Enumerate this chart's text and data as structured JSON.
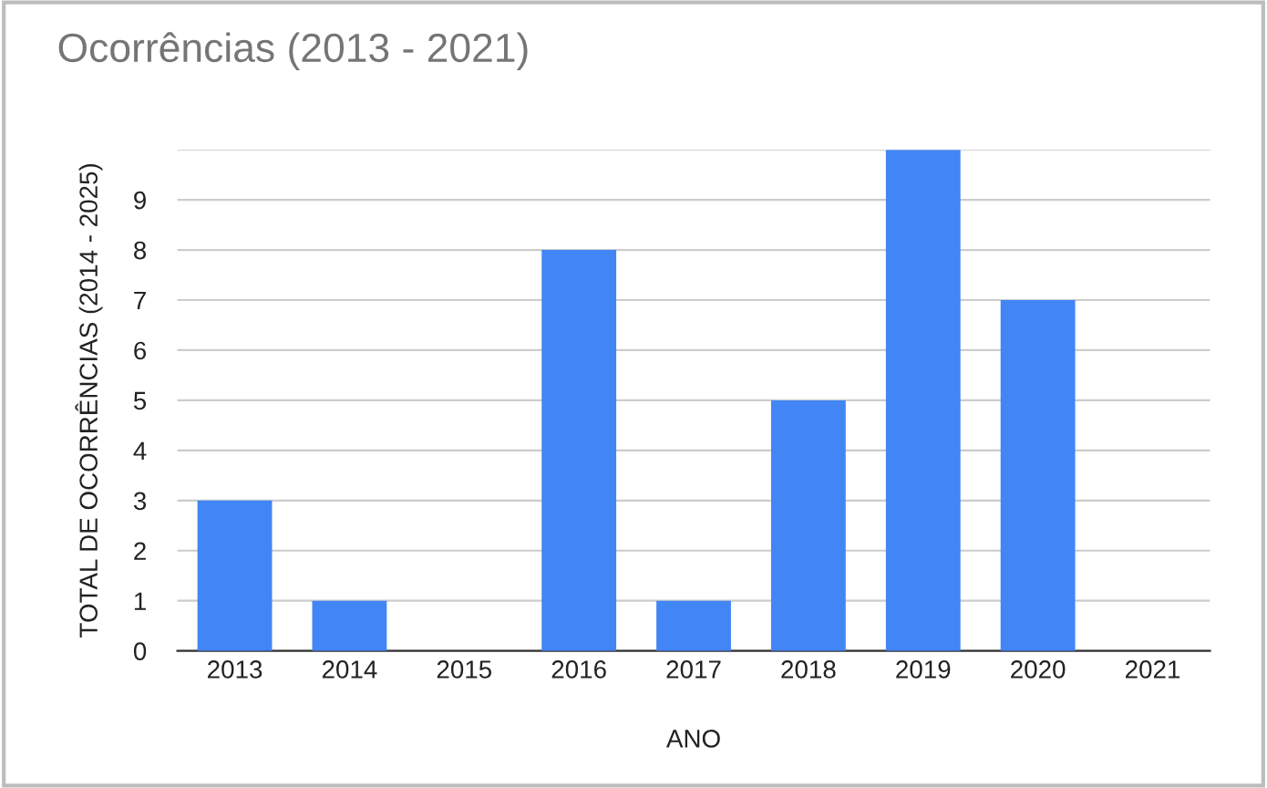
{
  "chart_data": {
    "type": "bar",
    "title": "Ocorrências (2013 - 2021)",
    "xlabel": "ANO",
    "ylabel": "TOTAL DE OCORRÊNCIAS (2014 - 2025)",
    "categories": [
      "2013",
      "2014",
      "2015",
      "2016",
      "2017",
      "2018",
      "2019",
      "2020",
      "2021"
    ],
    "values": [
      3,
      1,
      0,
      8,
      1,
      5,
      10,
      7,
      0
    ],
    "color": "#4285f4",
    "ylim": [
      0,
      10
    ],
    "yticks": [
      0,
      1,
      2,
      3,
      4,
      5,
      6,
      7,
      8,
      9,
      {
        "value": 10,
        "label": null
      }
    ],
    "grid": "y",
    "legend": false
  }
}
